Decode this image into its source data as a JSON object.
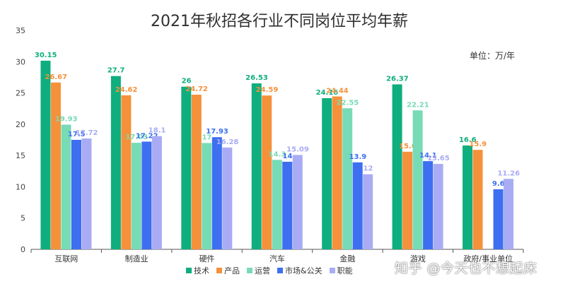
{
  "header": {
    "title": "2021年秋招各行业不同岗位平均年薪",
    "unit": "单位：万/年"
  },
  "watermark": "知乎 @今天也不想起床",
  "colors": {
    "series": [
      "#0fae7e",
      "#f5913a",
      "#77dbb6",
      "#3d6ff0",
      "#a9acf4"
    ],
    "axis": "#555555",
    "grid": "#dedede"
  },
  "chart_data": {
    "type": "bar",
    "title": "2021年秋招各行业不同岗位平均年薪",
    "xlabel": "",
    "ylabel": "",
    "ylim": [
      0,
      35
    ],
    "yticks": [
      0,
      5,
      10,
      15,
      20,
      25,
      30,
      35
    ],
    "grid": false,
    "legend_position": "bottom",
    "categories": [
      "互联网",
      "制造业",
      "硬件",
      "汽车",
      "金融",
      "游戏",
      "政府/事业单位"
    ],
    "series": [
      {
        "name": "技术",
        "values": [
          30.15,
          27.7,
          26,
          26.53,
          24.16,
          26.37,
          16.6
        ]
      },
      {
        "name": "产品",
        "values": [
          26.67,
          24.62,
          24.72,
          24.59,
          24.44,
          15.6,
          15.9
        ]
      },
      {
        "name": "运营",
        "values": [
          19.93,
          17.03,
          17,
          14.3,
          22.55,
          22.21,
          null
        ]
      },
      {
        "name": "市场&公关",
        "values": [
          17.5,
          17.22,
          17.93,
          14,
          13.9,
          14.1,
          9.6
        ]
      },
      {
        "name": "职能",
        "values": [
          17.72,
          18.1,
          16.28,
          15.09,
          12,
          13.65,
          11.26
        ]
      }
    ]
  }
}
